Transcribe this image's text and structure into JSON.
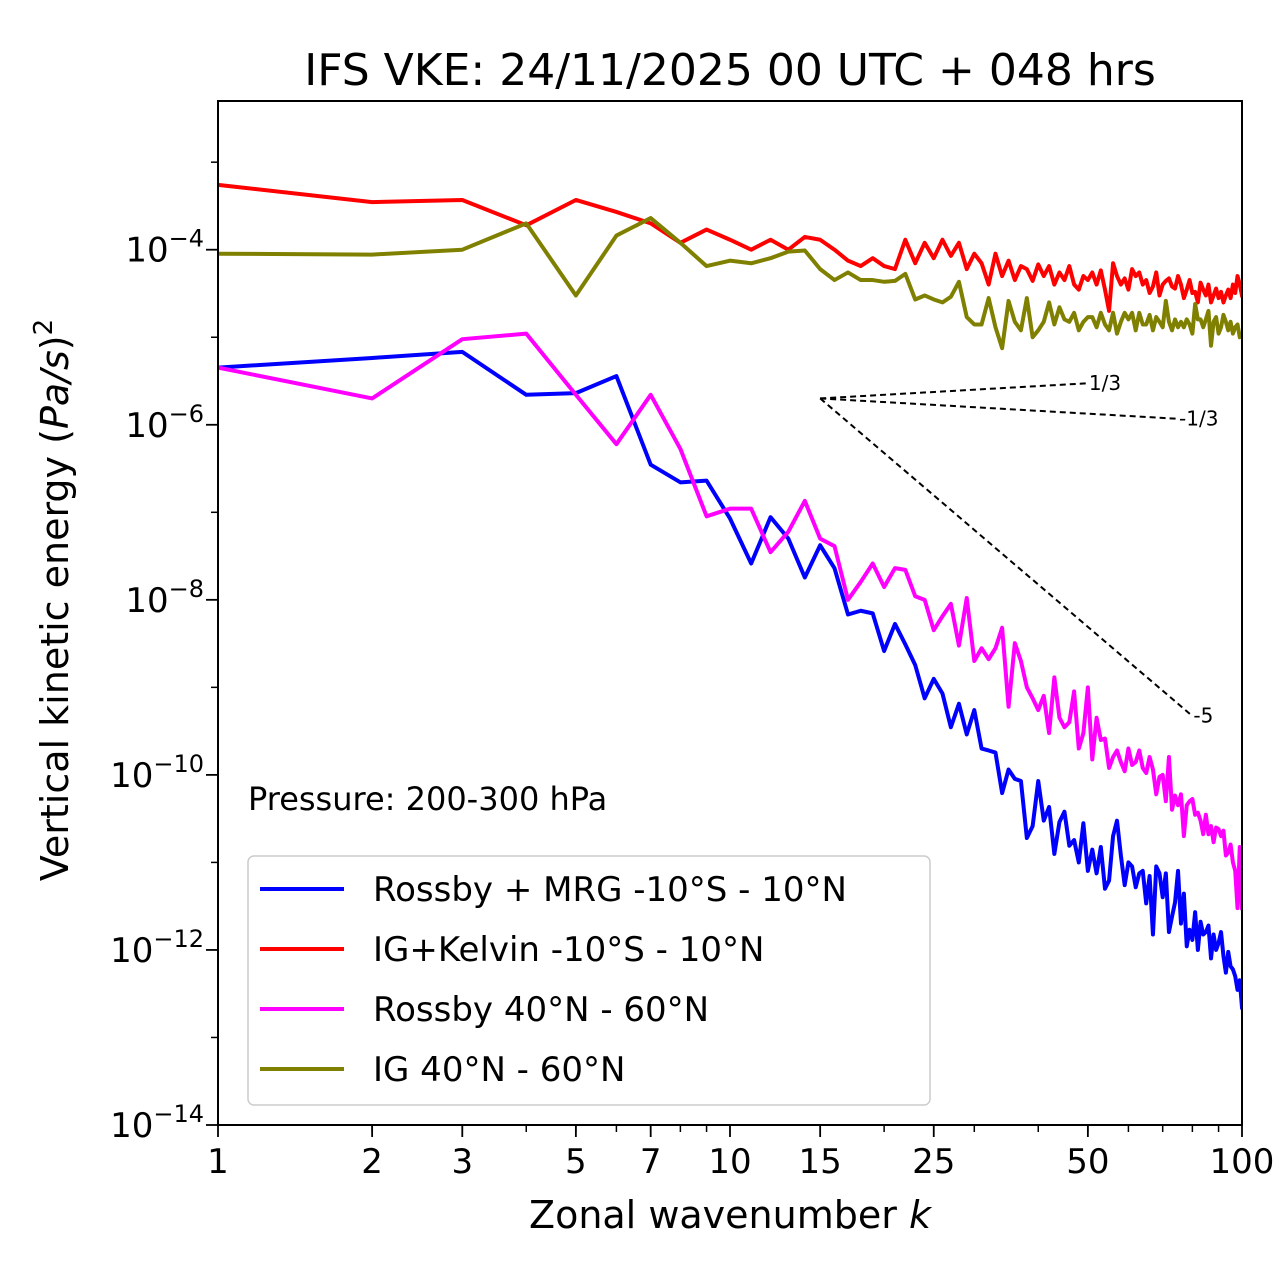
{
  "chart_data": {
    "type": "line",
    "title": "IFS VKE: 24/11/2025 00 UTC + 048 hrs",
    "xlabel_text": "Zonal wavenumber ",
    "xlabel_var": "k",
    "ylabel_text": "Vertical kinetic energy (",
    "ylabel_var": "Pa/s",
    "ylabel_close": ")",
    "ylabel_sup": "2",
    "xscale": "log",
    "yscale": "log",
    "xlim": [
      1,
      100
    ],
    "ylim": [
      1e-14,
      0.005
    ],
    "x_major_ticks": [
      1,
      2,
      3,
      5,
      7,
      10,
      15,
      25,
      50,
      100
    ],
    "x_tick_labels": [
      "1",
      "2",
      "3",
      "5",
      "7",
      "10",
      "15",
      "25",
      "50",
      "100"
    ],
    "y_ticks_exp": [
      -14,
      -12,
      -10,
      -8,
      -6,
      -4
    ],
    "y_tick_base": "10",
    "y_tick_exps_text": [
      "−14",
      "−12",
      "−10",
      "−8",
      "−6",
      "−4"
    ],
    "annotation": "Pressure: 200-300 hPa",
    "legend_position": "lower-left",
    "slopes": [
      {
        "label": "1/3",
        "x0": 15,
        "y0": 2e-06,
        "x1": 50,
        "y1": 2.98e-06
      },
      {
        "label": "-1/3",
        "x0": 15,
        "y0": 2e-06,
        "x1": 75,
        "y1": 1.17e-06
      },
      {
        "label": "-5",
        "x0": 15,
        "y0": 2e-06,
        "x1": 80,
        "y1": 4.7e-10
      }
    ],
    "series": [
      {
        "name": "Rossby + MRG -10°S - 10°N",
        "color": "#0000ff",
        "values": [
          4.5e-06,
          5.8e-06,
          6.8e-06,
          2.2e-06,
          2.3e-06,
          3.6e-06,
          3.5e-07,
          2.2e-07,
          2.3e-07,
          8.5e-08,
          2.6e-08,
          8.8e-08,
          5e-08,
          1.8e-08,
          4.2e-08,
          2.3e-08,
          6.8e-09,
          7.5e-09,
          7e-09,
          2.6e-09,
          5.3e-09,
          3.1e-09,
          1.8e-09,
          7.5e-10,
          1.25e-09,
          8.5e-10,
          3.5e-10,
          6.5e-10,
          2.9e-10,
          5.5e-10,
          2e-10,
          1.9e-10,
          1.8e-10,
          6.2e-11,
          1.15e-10,
          9e-11,
          8.5e-11,
          1.9e-11,
          2.6e-11,
          8.5e-11,
          3e-11,
          4.3e-11,
          1.25e-11,
          2.9e-11,
          3.8e-11,
          1.55e-11,
          1.8e-11,
          1e-11,
          2.8e-11,
          8e-12,
          1.4e-11,
          7.5e-12,
          1.5e-11,
          5e-12,
          6.2e-12,
          2e-11,
          3e-11,
          1.2e-11,
          5.5e-12,
          1e-11,
          9e-12,
          5.2e-12,
          7.5e-12,
          8e-12,
          3.4e-12,
          7e-12,
          1.5e-12,
          9e-12,
          7.5e-12,
          4e-12,
          7.5e-12,
          1.6e-12,
          2.4e-12,
          3.5e-12,
          8e-12,
          2e-12,
          4.4e-12,
          1.1e-12,
          1.7e-12,
          1.3e-12,
          2.7e-12,
          1e-12,
          2.1e-12,
          1.5e-12,
          1.6e-12,
          1.9e-12,
          8e-13,
          1.5e-12,
          1e-12,
          1.2e-12,
          1.6e-12,
          8.5e-13,
          5.5e-13,
          9.5e-13,
          6.5e-13,
          6e-13,
          5e-13,
          3.5e-13,
          4.5e-13,
          2.2e-13
        ]
      },
      {
        "name": "IG+Kelvin -10°S - 10°N",
        "color": "#ff0000",
        "values": [
          0.00055,
          0.00035,
          0.00037,
          0.00019,
          0.00037,
          0.00027,
          0.0002,
          0.00012,
          0.00017,
          0.00013,
          0.0001,
          0.00013,
          0.0001,
          0.00014,
          0.00013,
          0.0001,
          7.5e-05,
          6.5e-05,
          8e-05,
          6.5e-05,
          6e-05,
          0.00013,
          7e-05,
          0.00012,
          8e-05,
          0.00013,
          8.5e-05,
          0.00012,
          6e-05,
          9e-05,
          7e-05,
          4e-05,
          9e-05,
          5e-05,
          7.5e-05,
          4.5e-05,
          6.5e-05,
          6e-05,
          4.4e-05,
          6.8e-05,
          5e-05,
          6.5e-05,
          4e-05,
          5.5e-05,
          4.5e-05,
          6.5e-05,
          4e-05,
          3.5e-05,
          5e-05,
          4.5e-05,
          5.5e-05,
          4e-05,
          5.8e-05,
          3.5e-05,
          2e-05,
          7e-05,
          5e-05,
          4e-05,
          4.7e-05,
          3.5e-05,
          6e-05,
          5e-05,
          5.5e-05,
          4e-05,
          4.5e-05,
          3.2e-05,
          3.8e-05,
          5.5e-05,
          3e-05,
          4e-05,
          4.4e-05,
          4.7e-05,
          3.8e-05,
          3.6e-05,
          5e-05,
          4e-05,
          2.8e-05,
          3.5e-05,
          4.5e-05,
          3.2e-05,
          3.3e-05,
          2.5e-05,
          4.2e-05,
          3.5e-05,
          3e-05,
          4e-05,
          2.5e-05,
          3e-05,
          3.6e-05,
          2.8e-05,
          3.3e-05,
          2.5e-05,
          3e-05,
          3.5e-05,
          2.8e-05,
          4e-05,
          3.2e-05,
          5e-05,
          4e-05,
          3e-05
        ]
      },
      {
        "name": "Rossby 40°N - 60°N",
        "color": "#ff00ff",
        "values": [
          4.5e-06,
          2e-06,
          9.5e-06,
          1.1e-05,
          2.2e-06,
          6e-07,
          2.2e-06,
          5.3e-07,
          9e-08,
          1.1e-07,
          1.1e-07,
          3.5e-08,
          6e-08,
          1.35e-07,
          5e-08,
          4.1e-08,
          1e-08,
          1.6e-08,
          2.6e-08,
          1.4e-08,
          2.3e-08,
          2.2e-08,
          1.1e-08,
          1e-08,
          4.5e-09,
          6.5e-09,
          9e-09,
          3e-09,
          1.05e-08,
          2e-09,
          2.8e-09,
          2.1e-09,
          2.8e-09,
          4.8e-09,
          6e-10,
          3.2e-09,
          2e-09,
          1e-09,
          7.5e-10,
          5.5e-10,
          8e-10,
          3e-10,
          1.3e-09,
          4.5e-10,
          3.5e-10,
          4e-10,
          9e-10,
          2e-10,
          3e-10,
          1e-09,
          1.5e-10,
          4.5e-10,
          2.5e-10,
          2.6e-10,
          1.2e-10,
          1.6e-10,
          1.9e-10,
          1.4e-10,
          1.1e-10,
          2e-10,
          1.3e-10,
          1.4e-10,
          1.9e-10,
          1.2e-10,
          1.05e-10,
          1.6e-10,
          1.15e-10,
          6e-11,
          9.5e-11,
          1e-10,
          5e-11,
          1.6e-10,
          4e-11,
          5.8e-11,
          4.5e-11,
          6e-11,
          2e-11,
          4.5e-11,
          5e-11,
          5.3e-11,
          3.5e-11,
          3.7e-11,
          3e-11,
          2.1e-11,
          3.5e-11,
          2.1e-11,
          2.6e-11,
          1.7e-11,
          2.5e-11,
          2.4e-11,
          2e-11,
          2.3e-11,
          1.2e-11,
          1.3e-11,
          1.6e-11,
          1e-11,
          8e-12,
          3e-12,
          1.5e-11,
          3e-12
        ]
      },
      {
        "name": "IG 40°N - 60°N",
        "color": "#808000",
        "values": [
          9e-05,
          8.8e-05,
          0.0001,
          0.0002,
          3e-05,
          0.000145,
          0.00023,
          0.00012,
          6.5e-05,
          7.5e-05,
          7e-05,
          8e-05,
          9.5e-05,
          9.8e-05,
          6e-05,
          4.5e-05,
          5.5e-05,
          4.5e-05,
          4.5e-05,
          4.3e-05,
          4.4e-05,
          5.3e-05,
          2.7e-05,
          3e-05,
          2.7e-05,
          2.5e-05,
          2.9e-05,
          4.3e-05,
          1.7e-05,
          1.4e-05,
          1.4e-05,
          2.8e-05,
          1.3e-05,
          7.5e-06,
          2.6e-05,
          1.5e-05,
          1.2e-05,
          2.8e-05,
          1e-05,
          1.2e-05,
          1.5e-05,
          2.5e-05,
          1.4e-05,
          2.2e-05,
          1.6e-05,
          1.5e-05,
          1.9e-05,
          1.2e-05,
          1.5e-05,
          1.7e-05,
          1.7e-05,
          1.3e-05,
          1.9e-05,
          1.4e-05,
          1.2e-05,
          1.9e-05,
          1.1e-05,
          1.5e-05,
          1.9e-05,
          1.6e-05,
          1.9e-05,
          1.2e-05,
          1.9e-05,
          1.4e-05,
          1.4e-05,
          1.8e-05,
          1.2e-05,
          1.7e-05,
          1.5e-05,
          1.3e-05,
          2.6e-05,
          1.5e-05,
          1.2e-05,
          1.6e-05,
          1.3e-05,
          1.5e-05,
          1.3e-05,
          1.6e-05,
          1.4e-05,
          1.1e-05,
          2.4e-05,
          1.6e-05,
          1.6e-05,
          1.3e-05,
          1.6e-05,
          2e-05,
          8e-06,
          1.5e-05,
          1.7e-05,
          1.1e-05,
          1.3e-05,
          1.8e-05,
          1.5e-05,
          1.2e-05,
          1.5e-05,
          1.1e-05,
          1.3e-05,
          1.4e-05,
          1e-05,
          1.1e-05
        ]
      }
    ]
  }
}
